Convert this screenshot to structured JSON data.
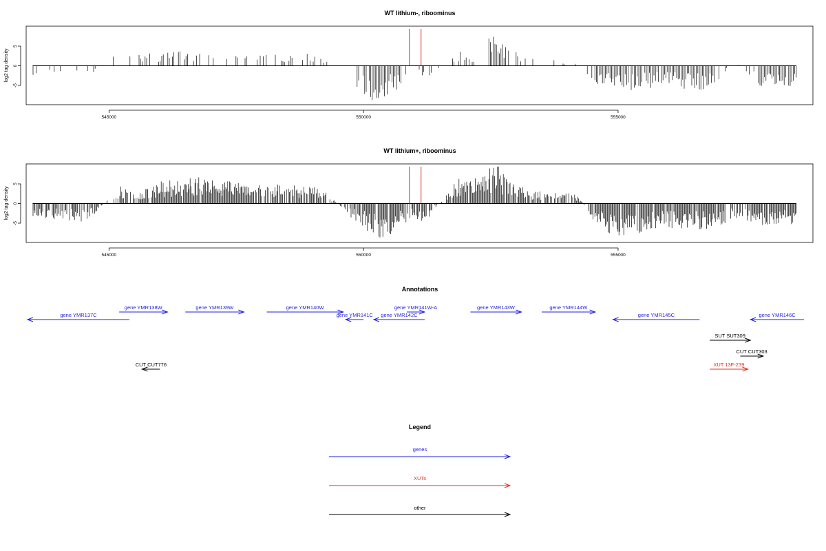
{
  "chart_data": [
    {
      "type": "bar",
      "title": "WT lithium-, riboominus",
      "ylabel": "log2 tag density",
      "xlabel": "",
      "xlim": [
        543400,
        558800
      ],
      "ylim": [
        -10,
        10
      ],
      "y_ticks": [
        "-5",
        "0",
        "5"
      ],
      "x_ticks": [
        "545000",
        "550000",
        "555000"
      ],
      "marker_lines": [
        550900,
        551130
      ],
      "marker_color": "#e0301e",
      "x": [
        543500,
        543800,
        544200,
        544600,
        545200,
        545600,
        546000,
        546400,
        546800,
        547200,
        547800,
        548300,
        548800,
        549200,
        549700,
        550000,
        550150,
        550350,
        550550,
        550750,
        551000,
        551200,
        551700,
        551900,
        552100,
        552350,
        552500,
        552650,
        552800,
        553200,
        553600,
        554200,
        554600,
        554900,
        555300,
        555700,
        556100,
        556500,
        556900,
        557300,
        557600,
        557900,
        558200,
        558500
      ],
      "values": [
        -2,
        -1.5,
        -1.8,
        -2.2,
        3,
        2.5,
        2.8,
        3,
        2.6,
        2.8,
        2.5,
        2.7,
        2.6,
        2.4,
        -2,
        -6,
        -7.5,
        -7,
        -6,
        -4,
        -2,
        -3,
        1.5,
        3,
        2.5,
        2,
        7,
        8,
        4,
        1.5,
        1.5,
        0.5,
        -5,
        -4.5,
        -5,
        -4.5,
        -4,
        -5.5,
        -4,
        1.5,
        -3,
        -5,
        -4.5,
        -4
      ]
    },
    {
      "type": "bar",
      "title": "WT lithium+, riboominus",
      "ylabel": "log2 tag density",
      "xlabel": "",
      "xlim": [
        543400,
        558800
      ],
      "ylim": [
        -10,
        10
      ],
      "y_ticks": [
        "-5",
        "0",
        "5"
      ],
      "x_ticks": [
        "545000",
        "550000",
        "555000"
      ],
      "marker_lines": [
        550900,
        551130
      ],
      "marker_color": "#e0301e",
      "x": [
        543500,
        543800,
        544200,
        544600,
        545200,
        545600,
        546000,
        546400,
        546800,
        547200,
        547800,
        548300,
        548800,
        549200,
        549700,
        550000,
        550150,
        550350,
        550550,
        550750,
        551000,
        551200,
        551700,
        551900,
        552100,
        552350,
        552500,
        552650,
        552800,
        553200,
        553600,
        554200,
        554600,
        554900,
        555300,
        555700,
        556100,
        556500,
        556900,
        557300,
        557600,
        557900,
        558200,
        558500
      ],
      "values": [
        -3.5,
        -3,
        -4,
        -3.5,
        3.5,
        3,
        4.5,
        5,
        5.5,
        5,
        4,
        4,
        3.5,
        3.5,
        -2.5,
        -5,
        -7,
        -8,
        -6.5,
        -4.5,
        -3,
        -4,
        3,
        5.5,
        5,
        6,
        7.5,
        8,
        5,
        3,
        2.5,
        2,
        -5,
        -6.5,
        -6.5,
        -5.5,
        -5,
        -5.5,
        -5,
        -3,
        -4,
        -4.5,
        -4,
        -4.5
      ]
    }
  ],
  "annotations": {
    "title": "Annotations",
    "features": [
      {
        "label": "gene YMR137C",
        "kind": "gene",
        "dir": "left",
        "start": 543400,
        "end": 545400,
        "row": 1
      },
      {
        "label": "gene YMR138W",
        "kind": "gene",
        "dir": "right",
        "start": 545200,
        "end": 546150,
        "row": 0
      },
      {
        "label": "gene YMR139W",
        "kind": "gene",
        "dir": "right",
        "start": 546500,
        "end": 547650,
        "row": 0
      },
      {
        "label": "gene YMR140W",
        "kind": "gene",
        "dir": "right",
        "start": 548100,
        "end": 549600,
        "row": 0
      },
      {
        "label": "gene YMR141C",
        "kind": "gene",
        "dir": "left",
        "start": 549650,
        "end": 550000,
        "row": 1
      },
      {
        "label": "gene YMR142C",
        "kind": "gene",
        "dir": "left",
        "start": 550200,
        "end": 551200,
        "row": 1
      },
      {
        "label": "gene YMR141W-A",
        "kind": "gene",
        "dir": "right",
        "start": 550850,
        "end": 551200,
        "row": 0
      },
      {
        "label": "gene YMR143W",
        "kind": "gene",
        "dir": "right",
        "start": 552100,
        "end": 553100,
        "row": 0
      },
      {
        "label": "gene YMR144W",
        "kind": "gene",
        "dir": "right",
        "start": 553500,
        "end": 554550,
        "row": 0
      },
      {
        "label": "gene YMR145C",
        "kind": "gene",
        "dir": "left",
        "start": 554900,
        "end": 556600,
        "row": 1
      },
      {
        "label": "gene YMR146C",
        "kind": "gene",
        "dir": "left",
        "start": 557600,
        "end": 558650,
        "row": 1
      },
      {
        "label": "SUT SUT309",
        "kind": "other",
        "dir": "right",
        "start": 556800,
        "end": 557600,
        "row": 3
      },
      {
        "label": "CUT CUT303",
        "kind": "other",
        "dir": "right",
        "start": 557400,
        "end": 557850,
        "row": 4
      },
      {
        "label": "XUT 13F-239",
        "kind": "xut",
        "dir": "right",
        "start": 556800,
        "end": 557550,
        "row": 5
      },
      {
        "label": "CUT CUT776",
        "kind": "other",
        "dir": "left",
        "start": 545650,
        "end": 546000,
        "row": 5
      }
    ]
  },
  "legend": {
    "title": "Legend",
    "items": [
      {
        "label": "genes",
        "color": "#1f1fe0"
      },
      {
        "label": "XUTs",
        "color": "#e0301e"
      },
      {
        "label": "other",
        "color": "#000000"
      }
    ]
  },
  "colors": {
    "gene": "#1f1fe0",
    "xut": "#e0301e",
    "other": "#000000"
  }
}
